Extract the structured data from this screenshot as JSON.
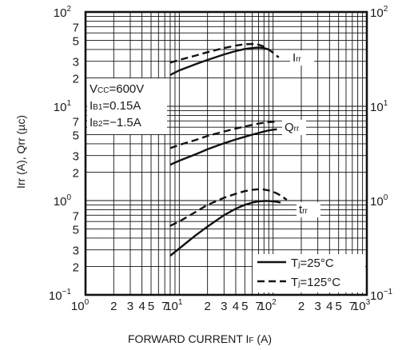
{
  "chart_data": {
    "type": "line",
    "x_scale": "log",
    "y_scale": "log",
    "xlim": [
      1,
      1000
    ],
    "ylim": [
      0.1,
      100
    ],
    "grid": true,
    "xlabel": {
      "main": "FORWARD CURRENT",
      "symbol": "I",
      "symbol_sub": "F",
      "unit": "(A)"
    },
    "ylabel": "Irr (A), Qrr (µc)",
    "x_ticks": [
      {
        "v": 1,
        "base": "10",
        "exp": "0"
      },
      {
        "v": 2,
        "text": "2"
      },
      {
        "v": 3,
        "text": "3"
      },
      {
        "v": 4,
        "text": "4"
      },
      {
        "v": 5,
        "text": "5"
      },
      {
        "v": 7,
        "text": "7"
      },
      {
        "v": 10,
        "base": "10",
        "exp": "1"
      },
      {
        "v": 20,
        "text": "2"
      },
      {
        "v": 30,
        "text": "3"
      },
      {
        "v": 40,
        "text": "4"
      },
      {
        "v": 50,
        "text": "5"
      },
      {
        "v": 70,
        "text": "7"
      },
      {
        "v": 100,
        "base": "10",
        "exp": "2"
      },
      {
        "v": 200,
        "text": "2"
      },
      {
        "v": 300,
        "text": "3"
      },
      {
        "v": 400,
        "text": "4"
      },
      {
        "v": 500,
        "text": "5"
      },
      {
        "v": 700,
        "text": "7"
      },
      {
        "v": 1000,
        "base": "10",
        "exp": "3"
      }
    ],
    "y_ticks_left": [
      {
        "v": 100,
        "base": "10",
        "exp": "2"
      },
      {
        "v": 70,
        "text": "7"
      },
      {
        "v": 50,
        "text": "5"
      },
      {
        "v": 30,
        "text": "3"
      },
      {
        "v": 20,
        "text": "2"
      },
      {
        "v": 10,
        "base": "10",
        "exp": "1"
      },
      {
        "v": 7,
        "text": "7"
      },
      {
        "v": 5,
        "text": "5"
      },
      {
        "v": 3,
        "text": "3"
      },
      {
        "v": 2,
        "text": "2"
      },
      {
        "v": 1,
        "base": "10",
        "exp": "0"
      },
      {
        "v": 0.7,
        "text": "7"
      },
      {
        "v": 0.5,
        "text": "5"
      },
      {
        "v": 0.3,
        "text": "3"
      },
      {
        "v": 0.2,
        "text": "2"
      },
      {
        "v": 0.1,
        "base": "10",
        "exp": "−1"
      }
    ],
    "y_ticks_right": [
      {
        "v": 100,
        "base": "10",
        "exp": "2"
      },
      {
        "v": 10,
        "base": "10",
        "exp": "1"
      },
      {
        "v": 1,
        "base": "10",
        "exp": "0"
      },
      {
        "v": 0.1,
        "base": "10",
        "exp": "−1"
      }
    ],
    "conditions": [
      {
        "main": "V",
        "sub": "CC",
        "value": "=600V"
      },
      {
        "main": "I",
        "sub": "B1",
        "value": "=0.15A"
      },
      {
        "main": "I",
        "sub": "B2",
        "value": "=−1.5A"
      }
    ],
    "legend": {
      "position": "bottom-right",
      "entries": [
        {
          "style": "solid",
          "main": "T",
          "sub": "j",
          "value": "=25°C"
        },
        {
          "style": "dashed",
          "main": "T",
          "sub": "j",
          "value": "=125°C"
        }
      ]
    },
    "curve_labels": [
      {
        "curve": "Irr",
        "main": "I",
        "sub": "rr"
      },
      {
        "curve": "Qrr",
        "main": "Q",
        "sub": "rr"
      },
      {
        "curve": "trr",
        "main": "t",
        "sub": "rr"
      }
    ],
    "series": [
      {
        "curve": "Irr",
        "style": "solid",
        "x": [
          8,
          10,
          15,
          20,
          30,
          40,
          50,
          60,
          70,
          80,
          90
        ],
        "y": [
          21.5,
          24,
          28,
          31,
          35.5,
          38.5,
          40.5,
          41.5,
          42,
          41.5,
          40
        ]
      },
      {
        "curve": "Irr",
        "style": "dashed",
        "x": [
          8,
          10,
          15,
          20,
          30,
          40,
          50,
          60,
          70,
          80,
          90,
          100,
          115
        ],
        "y": [
          29,
          31,
          34.5,
          37.5,
          41.5,
          44,
          45.5,
          45.8,
          45,
          43,
          40,
          37,
          33
        ]
      },
      {
        "curve": "Qrr",
        "style": "solid",
        "x": [
          8,
          10,
          15,
          20,
          30,
          40,
          50,
          60,
          70,
          80,
          90,
          100,
          110
        ],
        "y": [
          2.4,
          2.65,
          3.1,
          3.5,
          4.05,
          4.45,
          4.75,
          5,
          5.2,
          5.4,
          5.55,
          5.65,
          5.7
        ]
      },
      {
        "curve": "Qrr",
        "style": "dashed",
        "x": [
          8,
          10,
          15,
          20,
          30,
          40,
          50,
          60,
          70,
          80,
          90,
          100,
          110
        ],
        "y": [
          3.6,
          3.9,
          4.4,
          4.85,
          5.4,
          5.8,
          6.1,
          6.35,
          6.55,
          6.7,
          6.8,
          6.85,
          6.9
        ]
      },
      {
        "curve": "trr",
        "style": "solid",
        "x": [
          8,
          10,
          15,
          20,
          30,
          40,
          50,
          60,
          70,
          80,
          90,
          100,
          110,
          120
        ],
        "y": [
          0.26,
          0.31,
          0.43,
          0.53,
          0.7,
          0.82,
          0.9,
          0.95,
          0.98,
          0.99,
          0.99,
          0.98,
          0.97,
          0.95
        ]
      },
      {
        "curve": "trr",
        "style": "dashed",
        "x": [
          8,
          10,
          15,
          20,
          30,
          40,
          50,
          60,
          70,
          80,
          90,
          100,
          110,
          120,
          140
        ],
        "y": [
          0.54,
          0.6,
          0.76,
          0.9,
          1.07,
          1.18,
          1.26,
          1.3,
          1.32,
          1.31,
          1.28,
          1.24,
          1.19,
          1.13,
          1.02
        ]
      }
    ]
  }
}
